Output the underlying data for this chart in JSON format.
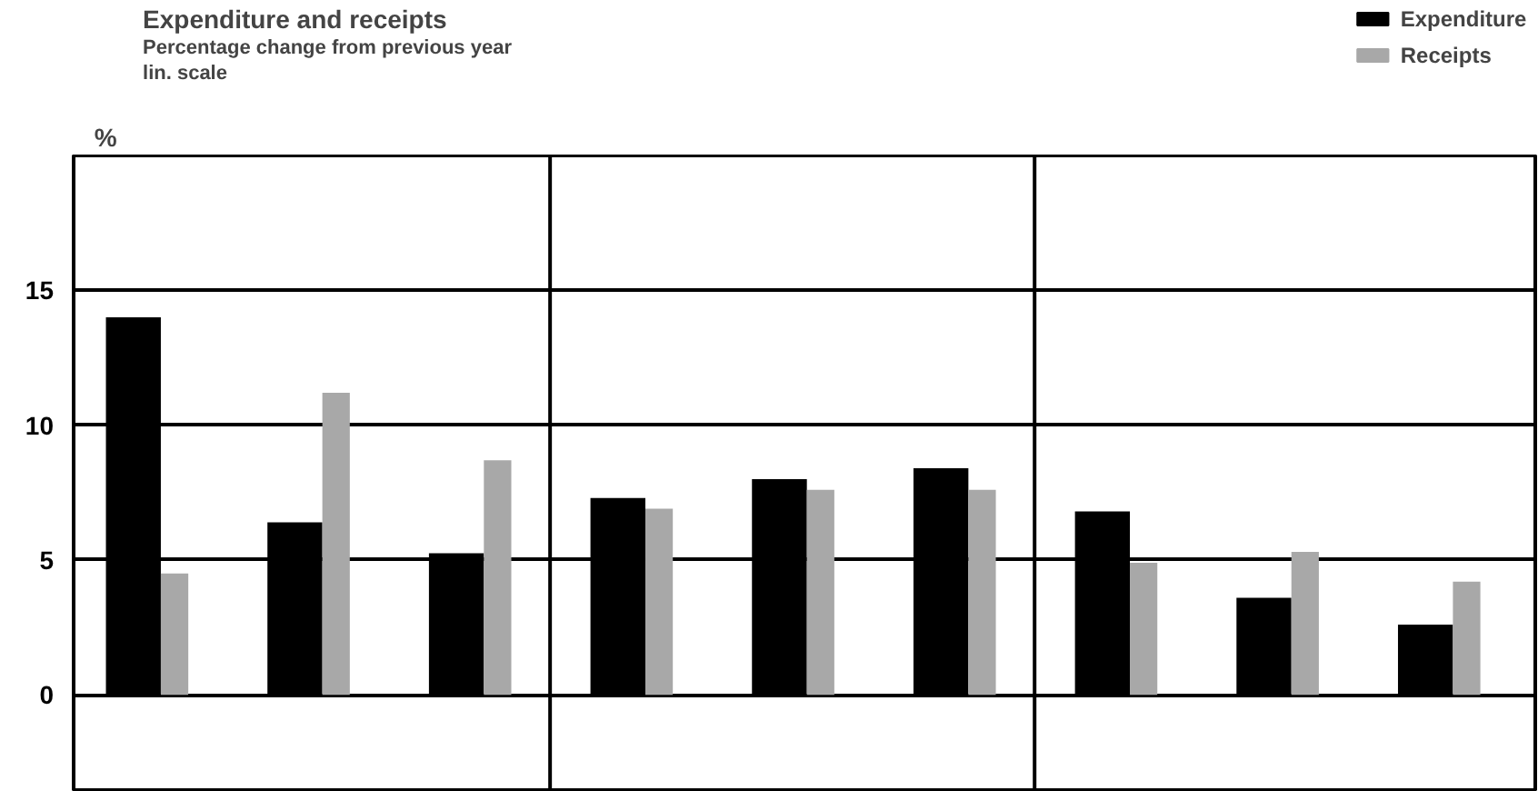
{
  "chart_data": {
    "type": "bar",
    "title": "Expenditure and receipts",
    "subtitle": "Percentage change from previous year",
    "annotations": [
      "lin. scale"
    ],
    "ylabel": "%",
    "categories": [
      null,
      null,
      null,
      null,
      null,
      null,
      null,
      null,
      null
    ],
    "ylim": [
      -3.6,
      20
    ],
    "yticks": [
      0,
      5,
      10,
      15
    ],
    "grid": "y",
    "legend": "top right",
    "series": [
      {
        "name": "Expenditure",
        "color": "#000000",
        "values": [
          14.0,
          6.4,
          5.25,
          7.3,
          8.0,
          8.4,
          6.8,
          3.6,
          2.6
        ]
      },
      {
        "name": "Receipts",
        "color": "#a8a8a8",
        "values": [
          4.5,
          11.2,
          8.7,
          6.9,
          7.6,
          7.6,
          4.9,
          5.3,
          4.2
        ]
      }
    ]
  }
}
